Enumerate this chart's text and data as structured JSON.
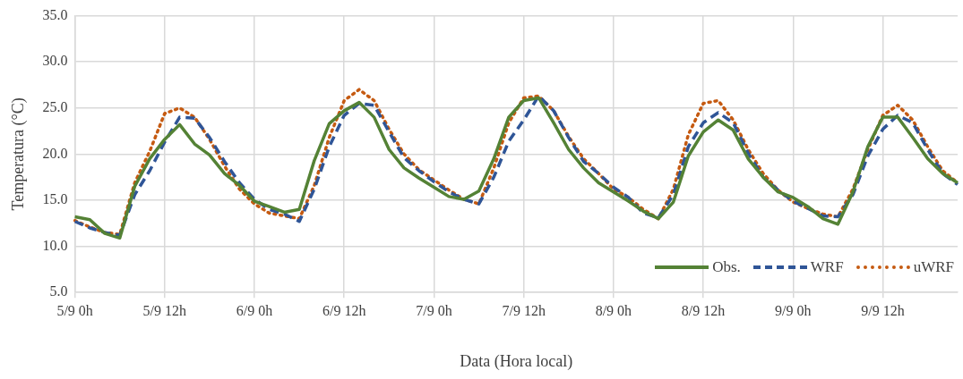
{
  "chart_data": {
    "type": "line",
    "xlabel": "Data (Hora local)",
    "ylabel": "Temperatura (°C)",
    "categories": [
      "5/9 0h",
      null,
      null,
      null,
      null,
      null,
      "5/9 12h",
      null,
      null,
      null,
      null,
      null,
      "6/9 0h",
      null,
      null,
      null,
      null,
      null,
      "6/9 12h",
      null,
      null,
      null,
      null,
      null,
      "7/9 0h",
      null,
      null,
      null,
      null,
      null,
      "7/9 12h",
      null,
      null,
      null,
      null,
      null,
      "8/9 0h",
      null,
      null,
      null,
      null,
      null,
      "8/9 12h",
      null,
      null,
      null,
      null,
      null,
      "9/9 0h",
      null,
      null,
      null,
      null,
      null,
      "9/9 12h",
      null,
      null,
      null,
      null,
      null
    ],
    "ylim": [
      5,
      35
    ],
    "yticks": [
      {
        "value": 5,
        "label": "5.0"
      },
      {
        "value": 10,
        "label": "10.0"
      },
      {
        "value": 15,
        "label": "15.0"
      },
      {
        "value": 20,
        "label": "20.0"
      },
      {
        "value": 25,
        "label": "25.0"
      },
      {
        "value": 30,
        "label": "30.0"
      },
      {
        "value": 35,
        "label": "35.0"
      }
    ],
    "grid": true,
    "legend": "bottom right",
    "marker": "none",
    "series": [
      {
        "name": "Obs.",
        "color": "#548235",
        "line_style": "solid",
        "values": [
          13.2,
          12.9,
          11.4,
          10.9,
          16.5,
          19.5,
          21.6,
          23.2,
          21.1,
          19.9,
          17.9,
          16.6,
          14.9,
          14.3,
          13.7,
          14.0,
          19.3,
          23.3,
          24.7,
          25.6,
          24.0,
          20.5,
          18.5,
          17.4,
          16.4,
          15.4,
          15.1,
          16.0,
          19.5,
          24.0,
          25.8,
          26.1,
          23.4,
          20.5,
          18.5,
          16.9,
          15.9,
          14.9,
          13.8,
          13.0,
          14.8,
          19.8,
          22.4,
          23.7,
          22.6,
          19.5,
          17.5,
          15.9,
          15.3,
          14.3,
          13.0,
          12.4,
          15.9,
          20.8,
          24.0,
          24.0,
          21.8,
          19.5,
          17.9,
          16.9
        ]
      },
      {
        "name": "WRF",
        "color": "#2f5597",
        "line_style": "dashed",
        "values": [
          12.7,
          12.0,
          11.5,
          11.2,
          15.6,
          18.2,
          21.3,
          24.0,
          23.9,
          21.8,
          19.2,
          16.9,
          15.1,
          14.0,
          13.5,
          12.7,
          16.2,
          20.8,
          24.2,
          25.5,
          25.3,
          22.4,
          19.6,
          18.2,
          17.0,
          15.9,
          15.1,
          14.6,
          17.5,
          21.4,
          23.7,
          26.3,
          24.7,
          21.8,
          19.2,
          17.9,
          16.4,
          15.3,
          13.6,
          13.1,
          15.6,
          20.8,
          23.4,
          24.5,
          23.4,
          20.1,
          17.5,
          16.1,
          14.9,
          14.1,
          13.3,
          13.2,
          15.6,
          19.8,
          22.7,
          24.2,
          23.4,
          20.5,
          17.9,
          16.7
        ]
      },
      {
        "name": "uWRF",
        "color": "#c55a11",
        "line_style": "dotted",
        "values": [
          12.8,
          12.1,
          11.5,
          11.3,
          16.9,
          20.3,
          24.4,
          25.0,
          24.0,
          21.6,
          18.7,
          16.2,
          14.6,
          13.6,
          13.3,
          13.0,
          16.6,
          21.8,
          25.8,
          27.0,
          25.8,
          22.7,
          20.0,
          18.3,
          17.2,
          16.1,
          15.1,
          14.6,
          18.5,
          23.4,
          26.1,
          26.3,
          24.7,
          21.9,
          19.5,
          17.9,
          16.2,
          15.3,
          14.0,
          13.0,
          16.2,
          22.1,
          25.5,
          25.8,
          23.7,
          20.5,
          17.9,
          16.1,
          14.8,
          14.1,
          13.5,
          13.2,
          16.2,
          20.5,
          24.2,
          25.3,
          23.7,
          20.8,
          18.2,
          16.9
        ]
      }
    ]
  }
}
